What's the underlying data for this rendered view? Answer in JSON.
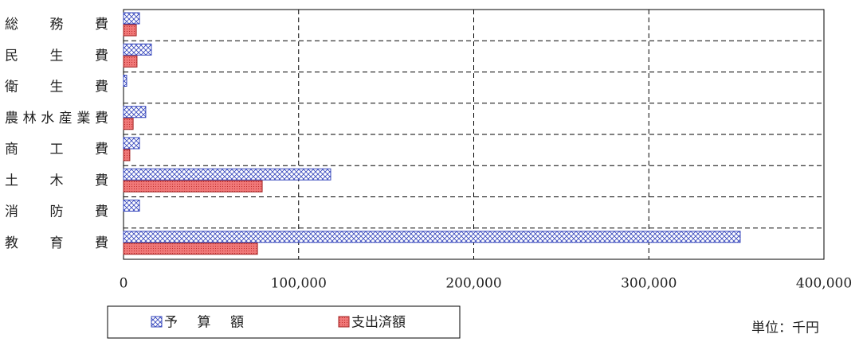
{
  "chart_data": {
    "type": "hbar",
    "categories": [
      "総務費",
      "民生費",
      "衛生費",
      "農林水産業費",
      "商工費",
      "土木費",
      "消防費",
      "教育費"
    ],
    "series": [
      {
        "name": "予算額",
        "color": "#3344bb",
        "values": [
          9100,
          15900,
          1800,
          12700,
          9100,
          118300,
          9100,
          352200
        ]
      },
      {
        "name": "支出済額",
        "color": "#e05555",
        "values": [
          7300,
          7700,
          0,
          5500,
          3600,
          79200,
          0,
          76500
        ]
      }
    ],
    "xlim": [
      0,
      400000
    ],
    "xticks": [
      0,
      {
        "value": 100000,
        "label": "100,000"
      },
      {
        "value": 200000,
        "label": "200,000"
      },
      {
        "value": 300000,
        "label": "300,000"
      },
      {
        "value": 400000,
        "label": "400,000"
      }
    ],
    "grid": true,
    "unit_note": "単位：千円"
  }
}
